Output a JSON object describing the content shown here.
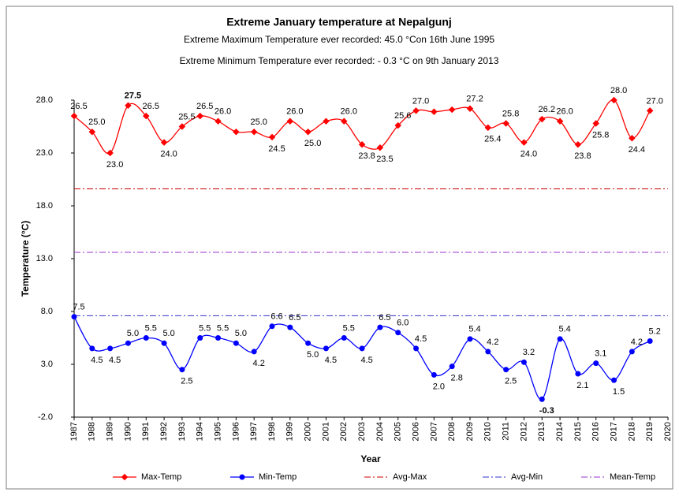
{
  "chart_data": {
    "type": "line",
    "title": "Extreme January temperature at Nepalgunj",
    "subtitles": [
      "Extreme Maximum  Temperature ever recorded: 45.0 °Con 16th June 1995",
      "Extreme Minimum Temperature ever recorded: - 0.3 °C on 9th January 2013"
    ],
    "x_label": "Year",
    "y_label": "Temperature (°C)",
    "x": [
      1987,
      1988,
      1989,
      1990,
      1991,
      1992,
      1993,
      1994,
      1995,
      1996,
      1997,
      1998,
      1999,
      2000,
      2001,
      2002,
      2003,
      2004,
      2005,
      2006,
      2007,
      2008,
      2009,
      2010,
      2011,
      2012,
      2013,
      2014,
      2015,
      2016,
      2017,
      2018,
      2019
    ],
    "xlim": [
      1987,
      2020
    ],
    "xticks": [
      1987,
      1988,
      1989,
      1990,
      1991,
      1992,
      1993,
      1994,
      1995,
      1996,
      1997,
      1998,
      1999,
      2000,
      2001,
      2002,
      2003,
      2004,
      2005,
      2006,
      2007,
      2008,
      2009,
      2010,
      2011,
      2012,
      2013,
      2014,
      2015,
      2016,
      2017,
      2018,
      2019,
      2020
    ],
    "ylim": [
      -2,
      28
    ],
    "yticks": [
      {
        "value": -2,
        "label": "-2.0"
      },
      {
        "value": 3,
        "label": "3.0"
      },
      {
        "value": 8,
        "label": "8.0"
      },
      {
        "value": 13,
        "label": "13.0"
      },
      {
        "value": 18,
        "label": "18.0"
      },
      {
        "value": 23,
        "label": "23.0"
      },
      {
        "value": 28,
        "label": "28.0"
      }
    ],
    "series": [
      {
        "name": "Max-Temp",
        "color": "#ff0000",
        "values": [
          26.5,
          25.0,
          23.0,
          27.5,
          26.5,
          24.0,
          25.5,
          26.5,
          26.0,
          25.0,
          25.0,
          24.5,
          26.0,
          25.0,
          26.0,
          26.0,
          23.8,
          23.5,
          25.6,
          27.0,
          26.9,
          27.1,
          27.2,
          25.4,
          25.8,
          24.0,
          26.2,
          26.0,
          23.8,
          25.8,
          28.0,
          24.4,
          27.0
        ],
        "value_labels": [
          "26.5",
          "25.0",
          "23.0",
          "27.5",
          "26.5",
          "24.0",
          "25.5",
          "26.5",
          "26.0",
          null,
          "25.0",
          "24.5",
          "26.0",
          "25.0",
          null,
          "26.0",
          "23.8",
          "23.5",
          "25.6",
          "27.0",
          null,
          null,
          "27.2",
          "25.4",
          "25.8",
          "24.0",
          "26.2",
          "26.0",
          "23.8",
          "25.8",
          "28.0",
          "24.4",
          "27.0"
        ],
        "bold": [
          3
        ]
      },
      {
        "name": "Min-Temp",
        "color": "#0000ff",
        "values": [
          7.5,
          4.5,
          4.5,
          5.0,
          5.5,
          5.0,
          2.5,
          5.5,
          5.5,
          5.0,
          4.2,
          6.6,
          6.5,
          5.0,
          4.5,
          5.5,
          4.5,
          6.5,
          6.0,
          4.5,
          2.0,
          2.8,
          5.4,
          4.2,
          2.5,
          3.2,
          -0.3,
          5.4,
          2.1,
          3.1,
          1.5,
          4.2,
          5.2
        ],
        "value_labels": [
          "7.5",
          "4.5",
          "4.5",
          "5.0",
          "5.5",
          "5.0",
          "2.5",
          "5.5",
          "5.5",
          "5.0",
          "4.2",
          "6.6",
          "6.5",
          "5.0",
          "4.5",
          "5.5",
          "4.5",
          "6.5",
          "6.0",
          "4.5",
          "2.0",
          "2.8",
          "5.4",
          "4.2",
          "2.5",
          "3.2",
          "-0.3",
          "5.4",
          "2.1",
          "3.1",
          "1.5",
          "4.2",
          "5.2"
        ],
        "bold": [
          26
        ]
      }
    ],
    "reference_lines": [
      {
        "name": "Avg-Max",
        "color": "#cc0000",
        "value": 19.6
      },
      {
        "name": "Avg-Min",
        "color": "#3333cc",
        "value": 7.6
      },
      {
        "name": "Mean-Temp",
        "color": "#9933cc",
        "value": 13.6
      }
    ],
    "legend": "bottom"
  }
}
